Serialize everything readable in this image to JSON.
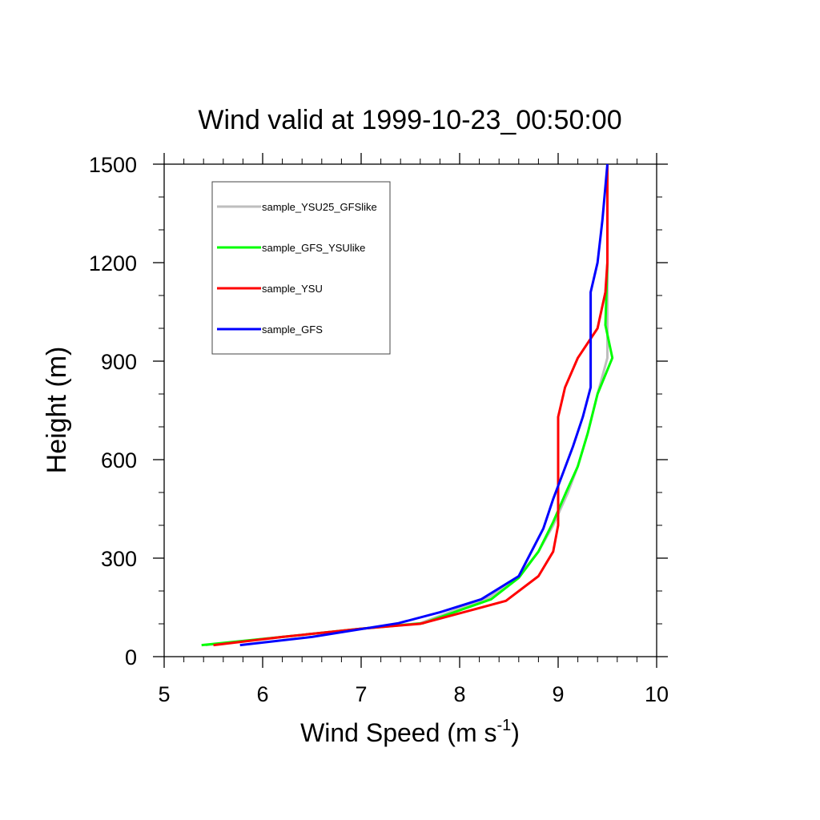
{
  "chart_data": {
    "type": "line",
    "title": "Wind valid at 1999-10-23_00:50:00",
    "xlabel": "Wind Speed (m s",
    "xlabel_sup": "-1",
    "xlabel_tail": ")",
    "ylabel": "Height (m)",
    "xlim": [
      5,
      10
    ],
    "ylim": [
      0,
      1500
    ],
    "xticks": [
      "5",
      "6",
      "7",
      "8",
      "9",
      "10"
    ],
    "yticks": [
      "0",
      "300",
      "600",
      "900",
      "1200",
      "1500"
    ],
    "legend_position": "top-left",
    "series": [
      {
        "name": "sample_YSU25_GFSlike",
        "color": "#bebebe",
        "points": [
          [
            5.42,
            35
          ],
          [
            6.2,
            60
          ],
          [
            7.0,
            85
          ],
          [
            7.6,
            102
          ],
          [
            8.3,
            180
          ],
          [
            8.6,
            245
          ],
          [
            8.8,
            320
          ],
          [
            8.95,
            400
          ],
          [
            9.1,
            500
          ],
          [
            9.2,
            580
          ],
          [
            9.3,
            680
          ],
          [
            9.4,
            800
          ],
          [
            9.5,
            910
          ],
          [
            9.5,
            1010
          ],
          [
            9.5,
            1200
          ],
          [
            9.5,
            1500
          ]
        ]
      },
      {
        "name": "sample_GFS_YSUlike",
        "color": "#00ff00",
        "points": [
          [
            5.38,
            35
          ],
          [
            6.2,
            60
          ],
          [
            7.0,
            85
          ],
          [
            7.63,
            102
          ],
          [
            8.32,
            175
          ],
          [
            8.6,
            240
          ],
          [
            8.8,
            320
          ],
          [
            8.95,
            410
          ],
          [
            9.08,
            500
          ],
          [
            9.2,
            580
          ],
          [
            9.3,
            680
          ],
          [
            9.4,
            800
          ],
          [
            9.55,
            910
          ],
          [
            9.48,
            1010
          ],
          [
            9.5,
            1200
          ],
          [
            9.5,
            1500
          ]
        ]
      },
      {
        "name": "sample_YSU",
        "color": "#ff0000",
        "points": [
          [
            5.5,
            35
          ],
          [
            6.2,
            60
          ],
          [
            7.0,
            85
          ],
          [
            7.6,
            100
          ],
          [
            8.1,
            140
          ],
          [
            8.47,
            170
          ],
          [
            8.8,
            245
          ],
          [
            8.95,
            320
          ],
          [
            9.0,
            400
          ],
          [
            9.0,
            500
          ],
          [
            9.0,
            640
          ],
          [
            9.0,
            730
          ],
          [
            9.07,
            820
          ],
          [
            9.2,
            910
          ],
          [
            9.4,
            1000
          ],
          [
            9.48,
            1110
          ],
          [
            9.5,
            1200
          ],
          [
            9.5,
            1500
          ]
        ]
      },
      {
        "name": "sample_GFS",
        "color": "#0000ff",
        "points": [
          [
            5.77,
            35
          ],
          [
            6.5,
            60
          ],
          [
            7.38,
            102
          ],
          [
            7.8,
            135
          ],
          [
            8.22,
            175
          ],
          [
            8.6,
            245
          ],
          [
            8.85,
            390
          ],
          [
            8.95,
            480
          ],
          [
            9.05,
            560
          ],
          [
            9.15,
            640
          ],
          [
            9.25,
            730
          ],
          [
            9.33,
            820
          ],
          [
            9.33,
            910
          ],
          [
            9.33,
            1000
          ],
          [
            9.33,
            1110
          ],
          [
            9.4,
            1200
          ],
          [
            9.45,
            1330
          ],
          [
            9.5,
            1500
          ]
        ]
      }
    ]
  }
}
